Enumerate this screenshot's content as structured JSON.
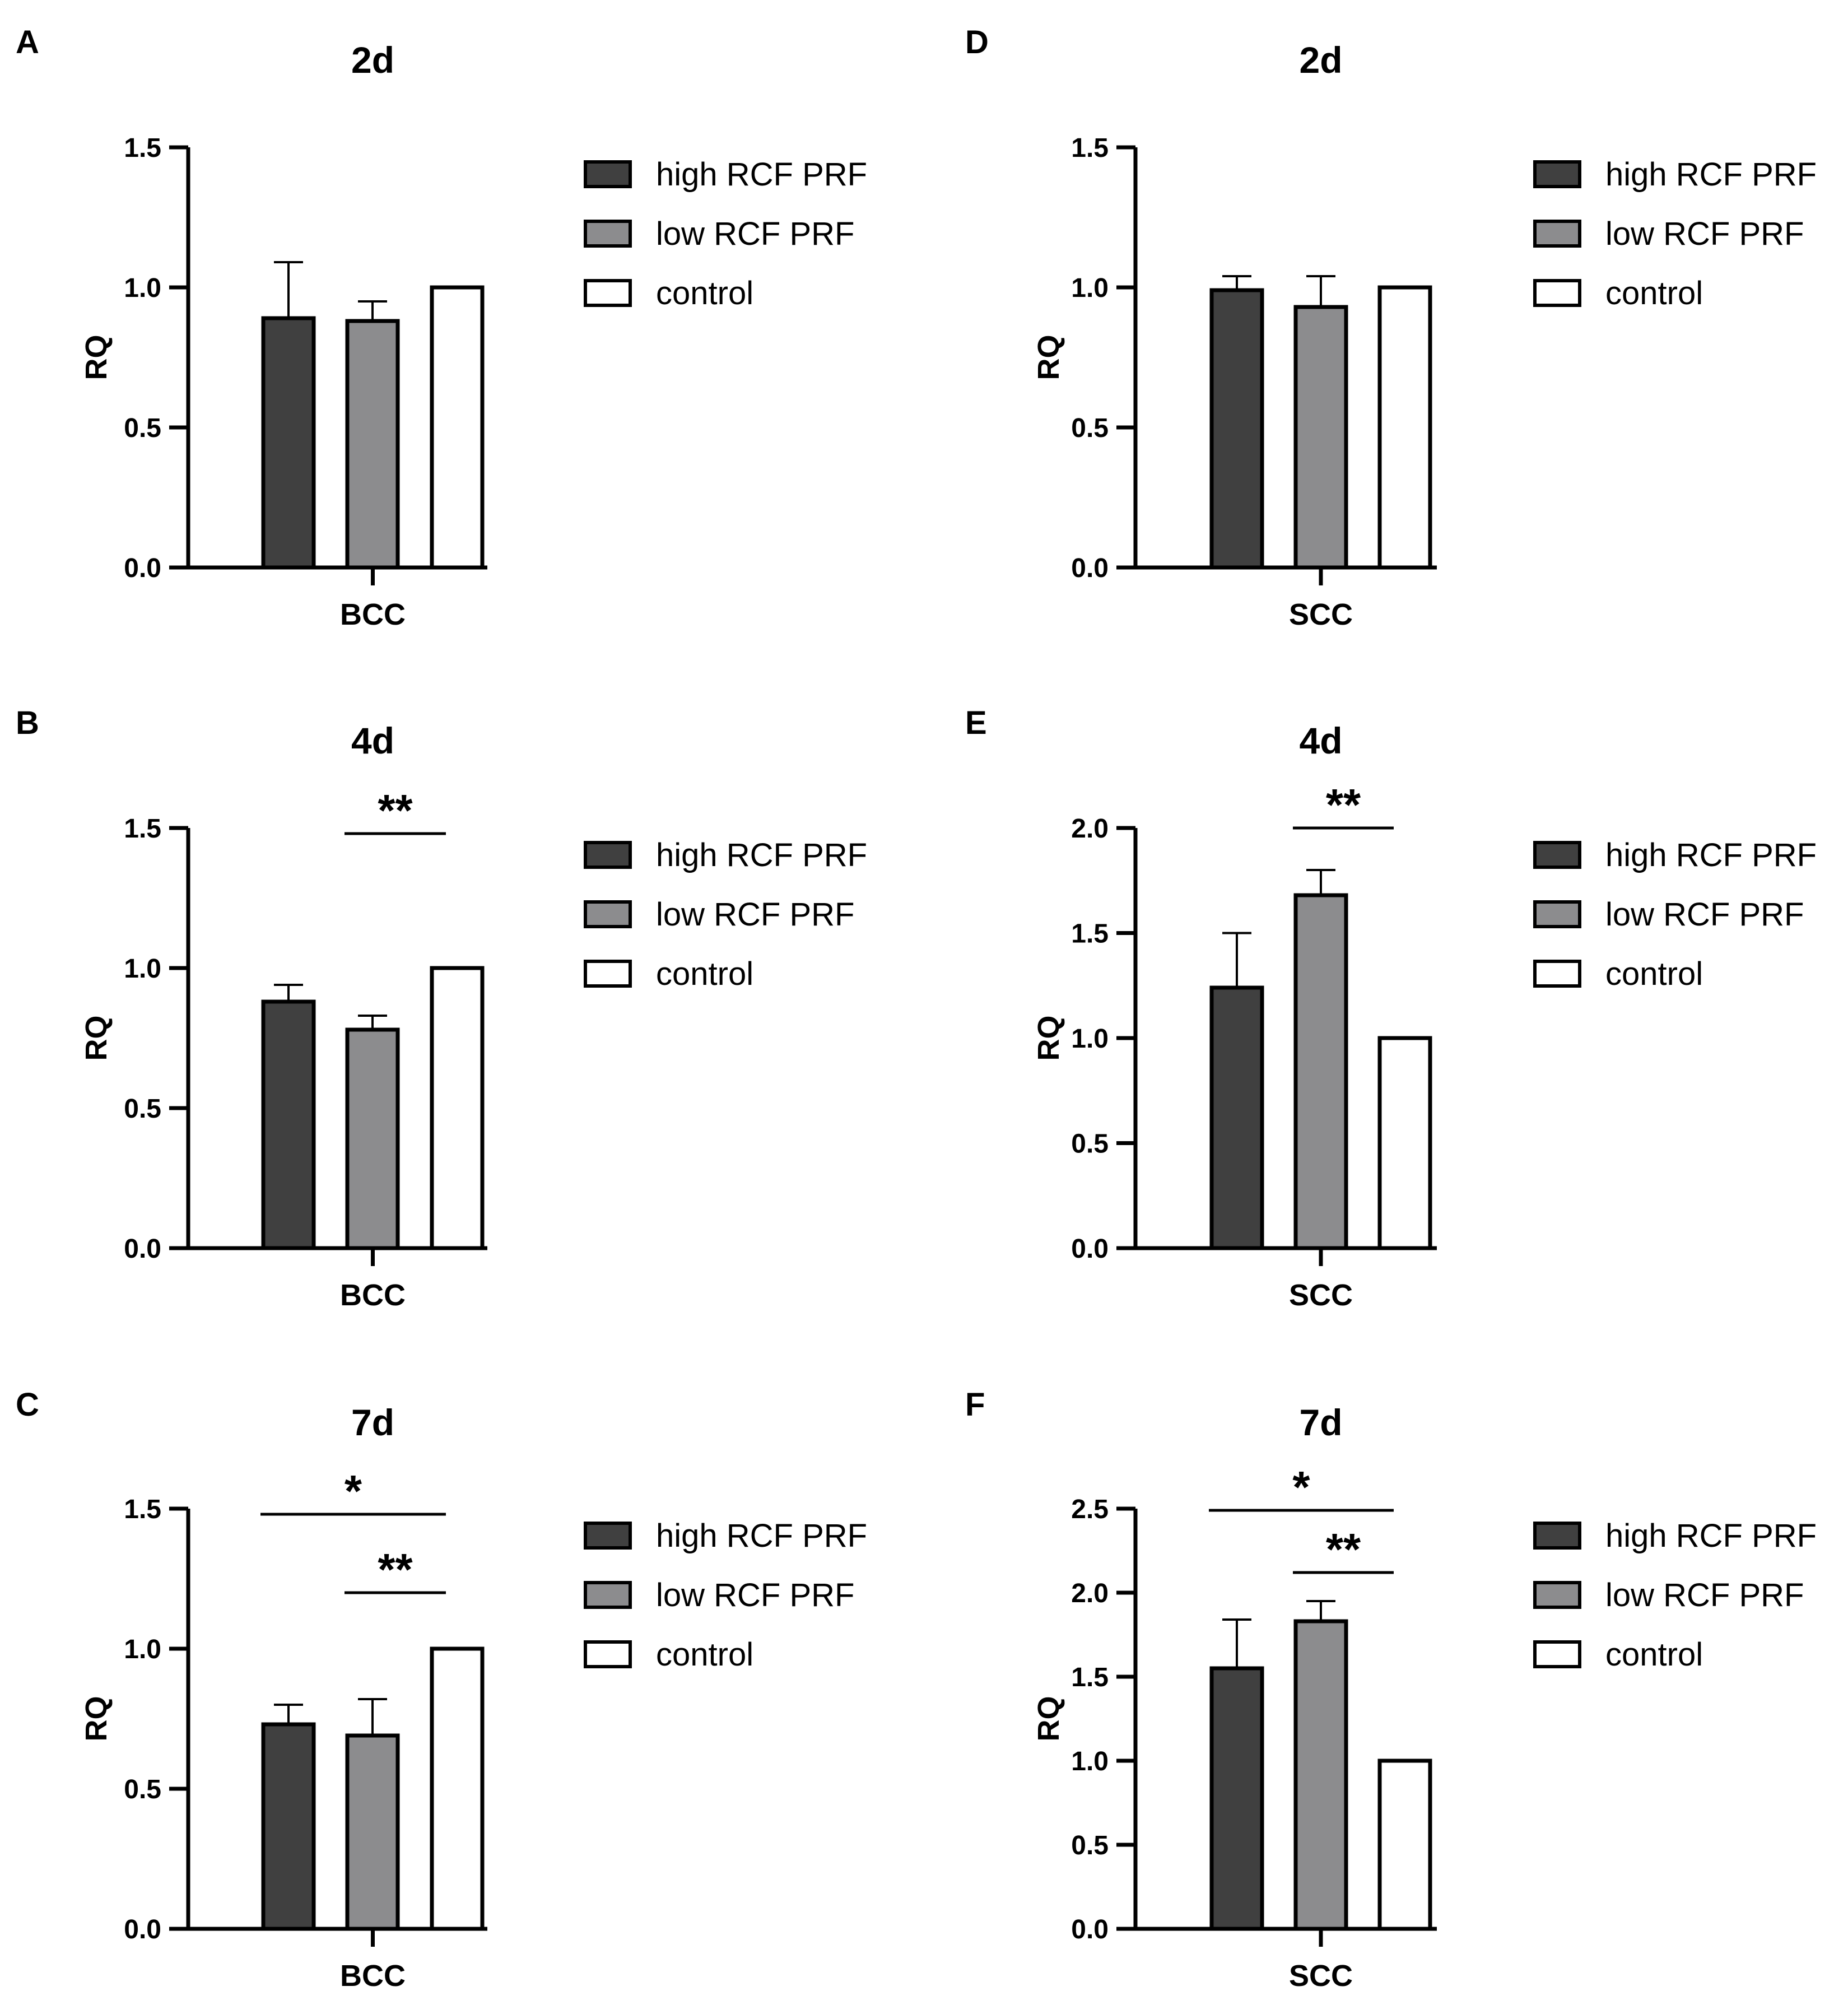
{
  "legend_colors": {
    "high RCF PRF": "#404040",
    "low RCF PRF": "#8c8c8e",
    "control": "#ffffff"
  },
  "chart_data": [
    {
      "panel": "A",
      "type": "bar",
      "title": "2d",
      "xlabel": "BCC",
      "ylabel": "RQ",
      "ylim": [
        0,
        1.5
      ],
      "yticks": [
        "0.0",
        "0.5",
        "1.0",
        "1.5"
      ],
      "legend": [
        "high RCF PRF",
        "low RCF PRF",
        "control"
      ],
      "series": [
        {
          "name": "high RCF PRF",
          "value": 0.89,
          "error": 0.2
        },
        {
          "name": "low RCF PRF",
          "value": 0.88,
          "error": 0.07
        },
        {
          "name": "control",
          "value": 1.0,
          "error": 0
        }
      ],
      "significance": []
    },
    {
      "panel": "B",
      "type": "bar",
      "title": "4d",
      "xlabel": "BCC",
      "ylabel": "RQ",
      "ylim": [
        0,
        1.5
      ],
      "yticks": [
        "0.0",
        "0.5",
        "1.0",
        "1.5"
      ],
      "legend": [
        "high RCF PRF",
        "low RCF PRF",
        "control"
      ],
      "series": [
        {
          "name": "high RCF PRF",
          "value": 0.88,
          "error": 0.06
        },
        {
          "name": "low RCF PRF",
          "value": 0.78,
          "error": 0.05
        },
        {
          "name": "control",
          "value": 1.0,
          "error": 0
        }
      ],
      "significance": [
        {
          "from": "low RCF PRF",
          "to": "control",
          "label": "**",
          "y": 1.48
        }
      ]
    },
    {
      "panel": "C",
      "type": "bar",
      "title": "7d",
      "xlabel": "BCC",
      "ylabel": "RQ",
      "ylim": [
        0,
        1.5
      ],
      "yticks": [
        "0.0",
        "0.5",
        "1.0",
        "1.5"
      ],
      "legend": [
        "high RCF PRF",
        "low RCF PRF",
        "control"
      ],
      "series": [
        {
          "name": "high RCF PRF",
          "value": 0.73,
          "error": 0.07
        },
        {
          "name": "low RCF PRF",
          "value": 0.69,
          "error": 0.13
        },
        {
          "name": "control",
          "value": 1.0,
          "error": 0
        }
      ],
      "significance": [
        {
          "from": "high RCF PRF",
          "to": "control",
          "label": "*",
          "y": 1.48
        },
        {
          "from": "low RCF PRF",
          "to": "control",
          "label": "**",
          "y": 1.2
        }
      ]
    },
    {
      "panel": "D",
      "type": "bar",
      "title": "2d",
      "xlabel": "SCC",
      "ylabel": "RQ",
      "ylim": [
        0,
        1.5
      ],
      "yticks": [
        "0.0",
        "0.5",
        "1.0",
        "1.5"
      ],
      "legend": [
        "high RCF PRF",
        "low RCF PRF",
        "control"
      ],
      "series": [
        {
          "name": "high RCF PRF",
          "value": 0.99,
          "error": 0.05
        },
        {
          "name": "low RCF PRF",
          "value": 0.93,
          "error": 0.11
        },
        {
          "name": "control",
          "value": 1.0,
          "error": 0
        }
      ],
      "significance": []
    },
    {
      "panel": "E",
      "type": "bar",
      "title": "4d",
      "xlabel": "SCC",
      "ylabel": "RQ",
      "ylim": [
        0,
        2.0
      ],
      "yticks": [
        "0.0",
        "0.5",
        "1.0",
        "1.5",
        "2.0"
      ],
      "legend": [
        "high RCF PRF",
        "low RCF PRF",
        "control"
      ],
      "series": [
        {
          "name": "high RCF PRF",
          "value": 1.24,
          "error": 0.26
        },
        {
          "name": "low RCF PRF",
          "value": 1.68,
          "error": 0.12
        },
        {
          "name": "control",
          "value": 1.0,
          "error": 0
        }
      ],
      "significance": [
        {
          "from": "low RCF PRF",
          "to": "control",
          "label": "**",
          "y": 2.0
        }
      ]
    },
    {
      "panel": "F",
      "type": "bar",
      "title": "7d",
      "xlabel": "SCC",
      "ylabel": "RQ",
      "ylim": [
        0,
        2.5
      ],
      "yticks": [
        "0.0",
        "0.5",
        "1.0",
        "1.5",
        "2.0",
        "2.5"
      ],
      "legend": [
        "high RCF PRF",
        "low RCF PRF",
        "control"
      ],
      "series": [
        {
          "name": "high RCF PRF",
          "value": 1.55,
          "error": 0.29
        },
        {
          "name": "low RCF PRF",
          "value": 1.83,
          "error": 0.12
        },
        {
          "name": "control",
          "value": 1.0,
          "error": 0
        }
      ],
      "significance": [
        {
          "from": "high RCF PRF",
          "to": "control",
          "label": "*",
          "y": 2.49
        },
        {
          "from": "low RCF PRF",
          "to": "control",
          "label": "**",
          "y": 2.12
        }
      ]
    }
  ]
}
